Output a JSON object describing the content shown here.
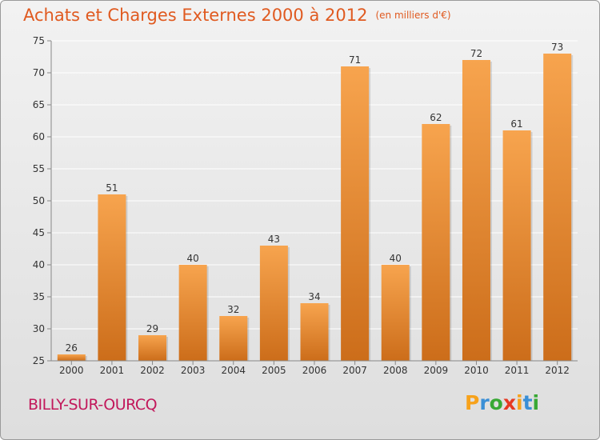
{
  "header": {
    "title": "Achats et Charges Externes 2000 à 2012",
    "unit": "(en milliers d'€)"
  },
  "commune": "BILLY-SUR-OURCQ",
  "logo": {
    "letters": [
      "P",
      "r",
      "o",
      "x",
      "i",
      "t",
      "i"
    ],
    "colors": [
      "#f7a21b",
      "#3a8fd6",
      "#39a935",
      "#e63922",
      "#f7a21b",
      "#3a8fd6",
      "#39a935"
    ]
  },
  "chart_data": {
    "type": "bar",
    "categories": [
      "2000",
      "2001",
      "2002",
      "2003",
      "2004",
      "2005",
      "2006",
      "2007",
      "2008",
      "2009",
      "2010",
      "2011",
      "2012"
    ],
    "values": [
      26,
      51,
      29,
      40,
      32,
      43,
      34,
      71,
      40,
      62,
      72,
      61,
      73
    ],
    "value_labels": [
      "26",
      "51",
      "29",
      "40",
      "32",
      "43",
      "34",
      "71",
      "40",
      "62",
      "72",
      "61",
      "73"
    ],
    "yticks": [
      25,
      30,
      35,
      40,
      45,
      50,
      55,
      60,
      65,
      70,
      75
    ],
    "ytick_labels": [
      "25",
      "30",
      "35",
      "40",
      "45",
      "50",
      "55",
      "60",
      "65",
      "70",
      "75"
    ],
    "ylim": [
      25,
      75
    ],
    "grid": true,
    "legend": "none",
    "colors": {
      "bar_top": "#f7a44e",
      "bar_bottom": "#cc6d1a",
      "grid": "#ffffff",
      "axis": "#888888"
    }
  }
}
